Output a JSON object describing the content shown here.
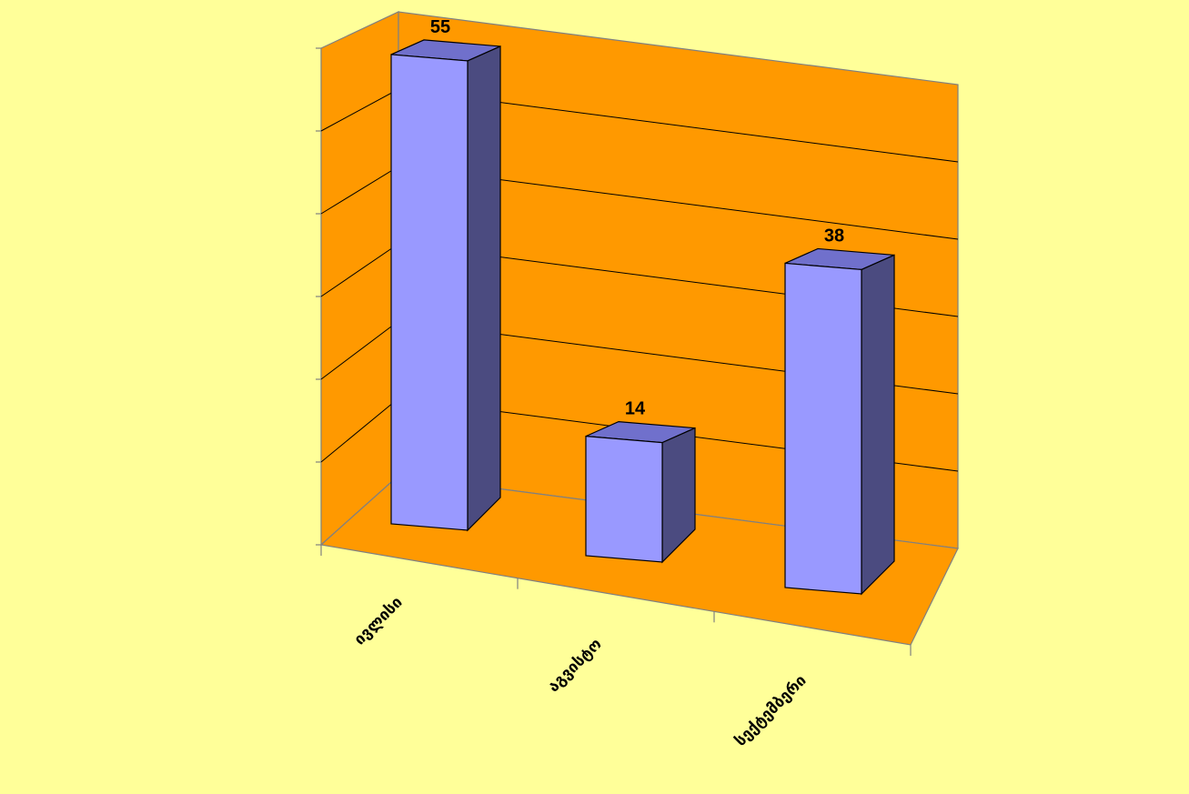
{
  "chart_data": {
    "type": "bar",
    "style": "3d-column",
    "categories": [
      "ივლისი",
      "აგვისტო",
      "სექტემბერი"
    ],
    "values": [
      55,
      14,
      38
    ],
    "ylim": [
      0,
      60
    ],
    "grid": true,
    "legend": "none",
    "colors": {
      "background": "#ffff99",
      "walls": "#ff9900",
      "bar_front": "#9999ff",
      "bar_top": "#7070cc",
      "bar_side": "#4b4b80",
      "gridline": "#000000",
      "axis": "#808080"
    }
  }
}
